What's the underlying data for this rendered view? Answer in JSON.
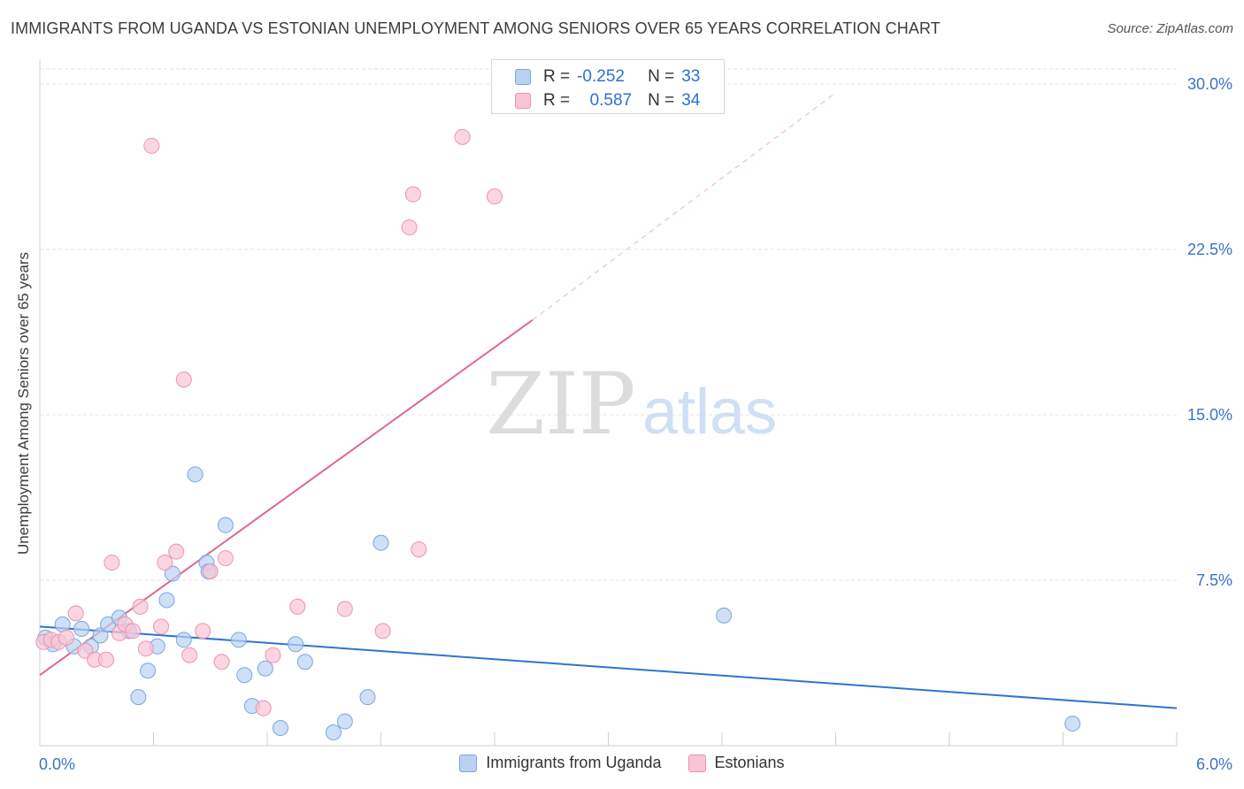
{
  "title": "IMMIGRANTS FROM UGANDA VS ESTONIAN UNEMPLOYMENT AMONG SENIORS OVER 65 YEARS CORRELATION CHART",
  "source": "Source: ZipAtlas.com",
  "watermark": {
    "zip": "ZIP",
    "atlas": "atlas"
  },
  "legend_stats": {
    "r_label": "R =",
    "n_label": "N =",
    "series1": {
      "r": "-0.252",
      "n": "33"
    },
    "series2": {
      "r": "0.587",
      "n": "34"
    }
  },
  "colors": {
    "blue_fill": "#b9d2f2",
    "blue_stroke": "#7aa6e0",
    "blue_line": "#2f74cf",
    "pink_fill": "#f9c5d6",
    "pink_stroke": "#ec93b0",
    "pink_line": "#e06890",
    "tick_label": "#3a73c7",
    "grid": "#e3e3e3"
  },
  "chart_data": {
    "type": "scatter",
    "title": "IMMIGRANTS FROM UGANDA VS ESTONIAN UNEMPLOYMENT AMONG SENIORS OVER 65 YEARS CORRELATION CHART",
    "xlabel": "",
    "ylabel": "Unemployment Among Seniors over 65 years",
    "xlim": [
      0,
      6.0
    ],
    "ylim": [
      0,
      30.0
    ],
    "x_tick_labels": [
      "0.0%",
      "6.0%"
    ],
    "y_ticks": [
      7.5,
      15.0,
      22.5,
      30.0
    ],
    "y_tick_labels": [
      "7.5%",
      "15.0%",
      "22.5%",
      "30.0%"
    ],
    "legend": [
      "Immigrants from Uganda",
      "Estonians"
    ],
    "series": [
      {
        "name": "Immigrants from Uganda",
        "r": -0.252,
        "n": 33,
        "trend": {
          "x0": 0.0,
          "y0": 5.4,
          "x1": 6.0,
          "y1": 1.7
        },
        "points": [
          [
            0.03,
            4.9
          ],
          [
            0.07,
            4.6
          ],
          [
            0.12,
            5.5
          ],
          [
            0.18,
            4.5
          ],
          [
            0.22,
            5.3
          ],
          [
            0.27,
            4.5
          ],
          [
            0.32,
            5.0
          ],
          [
            0.36,
            5.5
          ],
          [
            0.42,
            5.8
          ],
          [
            0.47,
            5.2
          ],
          [
            0.52,
            2.2
          ],
          [
            0.57,
            3.4
          ],
          [
            0.62,
            4.5
          ],
          [
            0.67,
            6.6
          ],
          [
            0.7,
            7.8
          ],
          [
            0.76,
            4.8
          ],
          [
            0.82,
            12.3
          ],
          [
            0.88,
            8.3
          ],
          [
            0.89,
            7.9
          ],
          [
            0.98,
            10.0
          ],
          [
            1.05,
            4.8
          ],
          [
            1.08,
            3.2
          ],
          [
            1.12,
            1.8
          ],
          [
            1.19,
            3.5
          ],
          [
            1.27,
            0.8
          ],
          [
            1.35,
            4.6
          ],
          [
            1.4,
            3.8
          ],
          [
            1.55,
            0.6
          ],
          [
            1.61,
            1.1
          ],
          [
            1.73,
            2.2
          ],
          [
            1.8,
            9.2
          ],
          [
            3.61,
            5.9
          ],
          [
            5.45,
            1.0
          ]
        ]
      },
      {
        "name": "Estonians",
        "r": 0.587,
        "n": 34,
        "trend": {
          "x0": 0.0,
          "y0": 3.2,
          "x1": 2.6,
          "y1": 19.3
        },
        "trend_ext": {
          "x0": 2.6,
          "y0": 19.3,
          "x1": 4.2,
          "y1": 29.6
        },
        "points": [
          [
            0.02,
            4.7
          ],
          [
            0.06,
            4.8
          ],
          [
            0.1,
            4.7
          ],
          [
            0.14,
            4.9
          ],
          [
            0.19,
            6.0
          ],
          [
            0.24,
            4.3
          ],
          [
            0.29,
            3.9
          ],
          [
            0.35,
            3.9
          ],
          [
            0.38,
            8.3
          ],
          [
            0.42,
            5.1
          ],
          [
            0.45,
            5.5
          ],
          [
            0.49,
            5.2
          ],
          [
            0.53,
            6.3
          ],
          [
            0.56,
            4.4
          ],
          [
            0.59,
            27.2
          ],
          [
            0.64,
            5.4
          ],
          [
            0.66,
            8.3
          ],
          [
            0.72,
            8.8
          ],
          [
            0.76,
            16.6
          ],
          [
            0.79,
            4.1
          ],
          [
            0.86,
            5.2
          ],
          [
            0.9,
            7.9
          ],
          [
            0.96,
            3.8
          ],
          [
            0.98,
            8.5
          ],
          [
            1.18,
            1.7
          ],
          [
            1.23,
            4.1
          ],
          [
            1.36,
            6.3
          ],
          [
            1.61,
            6.2
          ],
          [
            1.81,
            5.2
          ],
          [
            1.95,
            23.5
          ],
          [
            1.97,
            25.0
          ],
          [
            2.0,
            8.9
          ],
          [
            2.23,
            27.6
          ],
          [
            2.4,
            24.9
          ]
        ]
      }
    ]
  }
}
